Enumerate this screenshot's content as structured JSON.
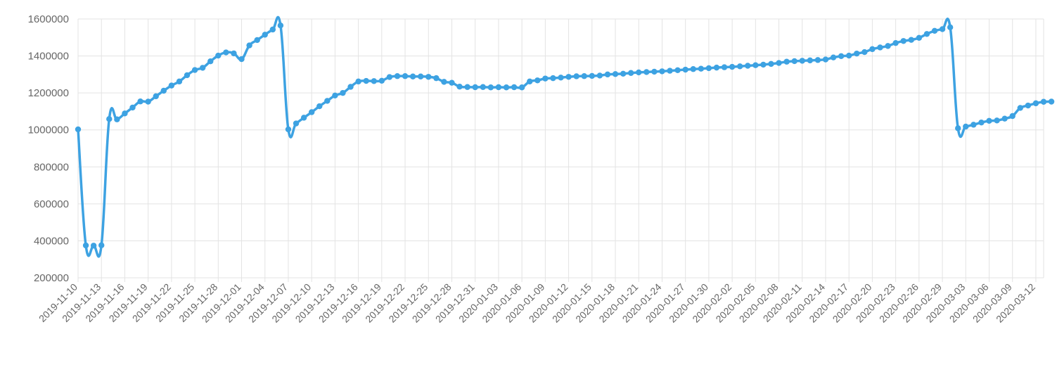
{
  "chart_data": {
    "type": "line",
    "x_start": "2019-11-10",
    "x_end": "2020-03-13",
    "ylim": [
      200000,
      1600000
    ],
    "y_ticks": [
      200000,
      400000,
      600000,
      800000,
      1000000,
      1200000,
      1400000,
      1600000
    ],
    "x_tick_labels": [
      "2019-11-10",
      "2019-11-13",
      "2019-11-16",
      "2019-11-19",
      "2019-11-22",
      "2019-11-25",
      "2019-11-28",
      "2019-12-01",
      "2019-12-04",
      "2019-12-07",
      "2019-12-10",
      "2019-12-13",
      "2019-12-16",
      "2019-12-19",
      "2019-12-22",
      "2019-12-25",
      "2019-12-28",
      "2019-12-31",
      "2020-01-03",
      "2020-01-06",
      "2020-01-09",
      "2020-01-12",
      "2020-01-15",
      "2020-01-18",
      "2020-01-21",
      "2020-01-24",
      "2020-01-27",
      "2020-01-30",
      "2020-02-02",
      "2020-02-05",
      "2020-02-08",
      "2020-02-11",
      "2020-02-14",
      "2020-02-17",
      "2020-02-20",
      "2020-02-23",
      "2020-02-26",
      "2020-02-29",
      "2020-03-03",
      "2020-03-06",
      "2020-03-09",
      "2020-03-12"
    ],
    "grid": true,
    "line_color": "#3da2e2",
    "values": [
      1003000,
      375000,
      374000,
      376000,
      1059000,
      1057000,
      1089000,
      1121000,
      1154000,
      1153000,
      1182000,
      1212000,
      1240000,
      1262000,
      1296000,
      1324000,
      1336000,
      1371000,
      1402000,
      1419000,
      1414000,
      1383000,
      1457000,
      1486000,
      1515000,
      1543000,
      1565000,
      1003000,
      1035000,
      1066000,
      1096000,
      1128000,
      1157000,
      1186000,
      1200000,
      1233000,
      1262000,
      1265000,
      1264000,
      1266000,
      1286000,
      1291000,
      1291000,
      1289000,
      1289000,
      1287000,
      1280000,
      1260000,
      1255000,
      1234000,
      1232000,
      1231000,
      1232000,
      1230000,
      1231000,
      1230000,
      1231000,
      1230000,
      1262000,
      1268000,
      1278000,
      1280000,
      1283000,
      1287000,
      1290000,
      1291000,
      1292000,
      1294000,
      1300000,
      1302000,
      1304000,
      1308000,
      1311000,
      1313000,
      1315000,
      1317000,
      1320000,
      1323000,
      1326000,
      1329000,
      1331000,
      1334000,
      1337000,
      1339000,
      1341000,
      1344000,
      1347000,
      1350000,
      1353000,
      1357000,
      1362000,
      1369000,
      1372000,
      1374000,
      1376000,
      1378000,
      1381000,
      1392000,
      1399000,
      1402000,
      1413000,
      1421000,
      1437000,
      1446000,
      1454000,
      1470000,
      1481000,
      1487000,
      1498000,
      1519000,
      1536000,
      1545000,
      1555000,
      1009000,
      1018000,
      1028000,
      1040000,
      1049000,
      1051000,
      1061000,
      1075000,
      1119000,
      1132000,
      1144000,
      1152000,
      1153000
    ]
  }
}
